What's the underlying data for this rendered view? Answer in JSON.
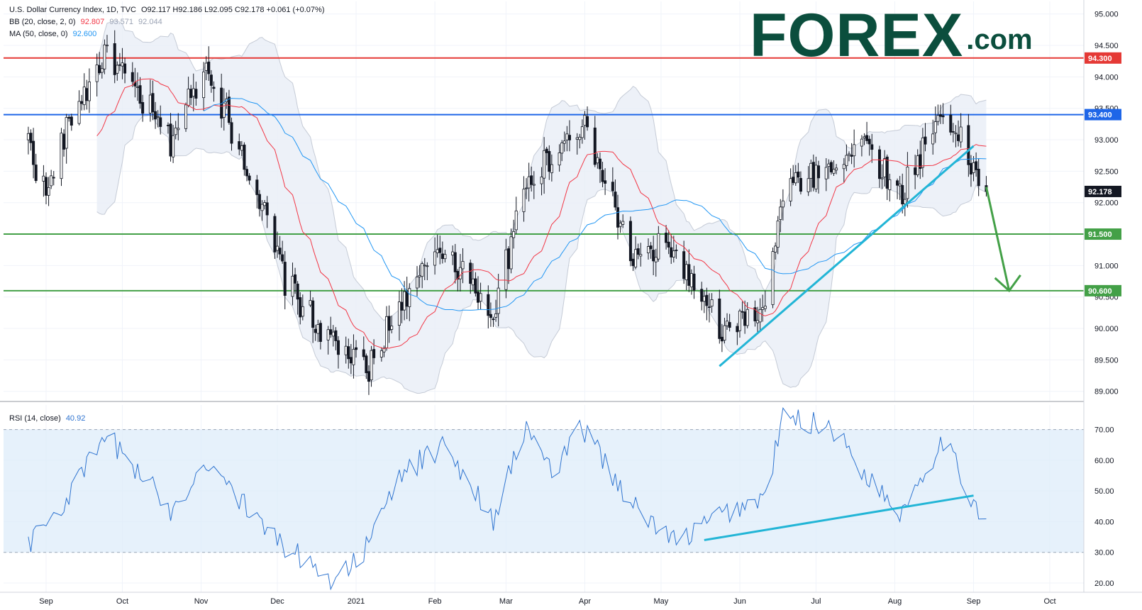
{
  "legend": {
    "instrument": "U.S. Dollar Currency Index, 1D, TVC",
    "ohlc": "O92.117  H92.186  L92.095  C92.178  +0.061 (+0.07%)",
    "bb_label": "BB (20, close, 2, 0)",
    "bb_basis": "92.807",
    "bb_upper": "93.571",
    "bb_lower": "92.044",
    "ma_label": "MA (50, close, 0)",
    "ma_value": "92.600",
    "rsi_label": "RSI (14, close)",
    "rsi_value": "40.92"
  },
  "logo": {
    "main": "FOREX",
    "suffix": ".com"
  },
  "colors": {
    "up": "#26a69a",
    "down": "#000000",
    "candle": "#131722",
    "bb_basis": "#f23645",
    "ma": "#2196f3",
    "bb_fill": "#e8eef6",
    "resistance_red": "#e53935",
    "resistance_blue": "#1e66e8",
    "support_green": "#43a047",
    "trendline": "#22b5d6",
    "rsi_line": "#2f74d0",
    "rsi_band": "#ddecfa"
  },
  "chart_data": [
    {
      "type": "candlestick",
      "title": "U.S. Dollar Currency Index, 1D, TVC",
      "x_tick_labels": [
        "Sep",
        "Oct",
        "Nov",
        "Dec",
        "2021",
        "Feb",
        "Mar",
        "Apr",
        "May",
        "Jun",
        "Jul",
        "Aug",
        "Sep",
        "Oct"
      ],
      "y_tick_labels": [
        "89.000",
        "89.500",
        "90.000",
        "90.500",
        "91.000",
        "91.500",
        "92.000",
        "92.500",
        "93.000",
        "93.500",
        "94.000",
        "94.500",
        "95.000"
      ],
      "ylim": [
        88.85,
        95.2
      ],
      "levels": [
        {
          "value": 94.3,
          "label": "94.300",
          "color": "#e53935"
        },
        {
          "value": 93.4,
          "label": "93.400",
          "color": "#1e66e8"
        },
        {
          "value": 91.5,
          "label": "91.500",
          "color": "#43a047"
        },
        {
          "value": 90.6,
          "label": "90.600",
          "color": "#43a047"
        }
      ],
      "last_price": {
        "value": 92.178,
        "label": "92.178"
      },
      "anchors": [
        [
          "2020-08-25",
          93.0
        ],
        [
          "2020-09-01",
          92.1
        ],
        [
          "2020-09-10",
          93.3
        ],
        [
          "2020-09-25",
          94.4
        ],
        [
          "2020-10-05",
          93.8
        ],
        [
          "2020-10-20",
          93.0
        ],
        [
          "2020-11-03",
          94.2
        ],
        [
          "2020-11-20",
          92.5
        ],
        [
          "2020-12-04",
          90.8
        ],
        [
          "2020-12-17",
          90.0
        ],
        [
          "2021-01-06",
          89.3
        ],
        [
          "2021-01-18",
          90.4
        ],
        [
          "2021-02-05",
          91.3
        ],
        [
          "2021-02-24",
          90.2
        ],
        [
          "2021-03-09",
          92.3
        ],
        [
          "2021-03-31",
          93.3
        ],
        [
          "2021-04-20",
          91.1
        ],
        [
          "2021-05-05",
          91.3
        ],
        [
          "2021-05-25",
          89.9
        ],
        [
          "2021-06-11",
          90.3
        ],
        [
          "2021-06-18",
          92.2
        ],
        [
          "2021-07-07",
          92.6
        ],
        [
          "2021-07-20",
          93.0
        ],
        [
          "2021-08-03",
          92.1
        ],
        [
          "2021-08-20",
          93.5
        ],
        [
          "2021-08-31",
          92.6
        ],
        [
          "2021-09-06",
          92.18
        ]
      ],
      "bollinger": {
        "period": 20,
        "stddev": 2
      },
      "ma": {
        "period": 50
      },
      "trendlines": [
        {
          "from": [
            "2021-05-24",
            89.4
          ],
          "to": [
            "2021-09-01",
            92.9
          ]
        }
      ],
      "projection_arrow": {
        "from": [
          "2021-09-06",
          92.25
        ],
        "to": [
          "2021-09-15",
          90.6
        ]
      }
    },
    {
      "type": "line",
      "title": "RSI (14, close)",
      "y_tick_labels": [
        "20.00",
        "30.00",
        "40.00",
        "50.00",
        "60.00",
        "70.00"
      ],
      "ylim": [
        17,
        78
      ],
      "band": [
        30,
        70
      ],
      "last_value": 40.92,
      "anchors": [
        [
          "2020-08-25",
          33
        ],
        [
          "2020-09-08",
          46
        ],
        [
          "2020-09-25",
          68
        ],
        [
          "2020-10-20",
          44
        ],
        [
          "2020-11-04",
          60
        ],
        [
          "2020-11-25",
          38
        ],
        [
          "2020-12-17",
          24
        ],
        [
          "2020-12-23",
          21
        ],
        [
          "2021-01-06",
          32
        ],
        [
          "2021-01-18",
          55
        ],
        [
          "2021-02-05",
          65
        ],
        [
          "2021-02-24",
          41
        ],
        [
          "2021-03-09",
          71
        ],
        [
          "2021-03-20",
          55
        ],
        [
          "2021-03-31",
          71
        ],
        [
          "2021-04-20",
          45
        ],
        [
          "2021-05-07",
          33
        ],
        [
          "2021-05-24",
          42
        ],
        [
          "2021-06-11",
          48
        ],
        [
          "2021-06-18",
          74
        ],
        [
          "2021-07-07",
          71
        ],
        [
          "2021-07-20",
          56
        ],
        [
          "2021-08-03",
          43
        ],
        [
          "2021-08-20",
          67
        ],
        [
          "2021-08-31",
          48
        ],
        [
          "2021-09-06",
          40.9
        ]
      ],
      "trendlines": [
        {
          "from": [
            "2021-05-18",
            34
          ],
          "to": [
            "2021-09-01",
            48.5
          ]
        }
      ]
    }
  ]
}
